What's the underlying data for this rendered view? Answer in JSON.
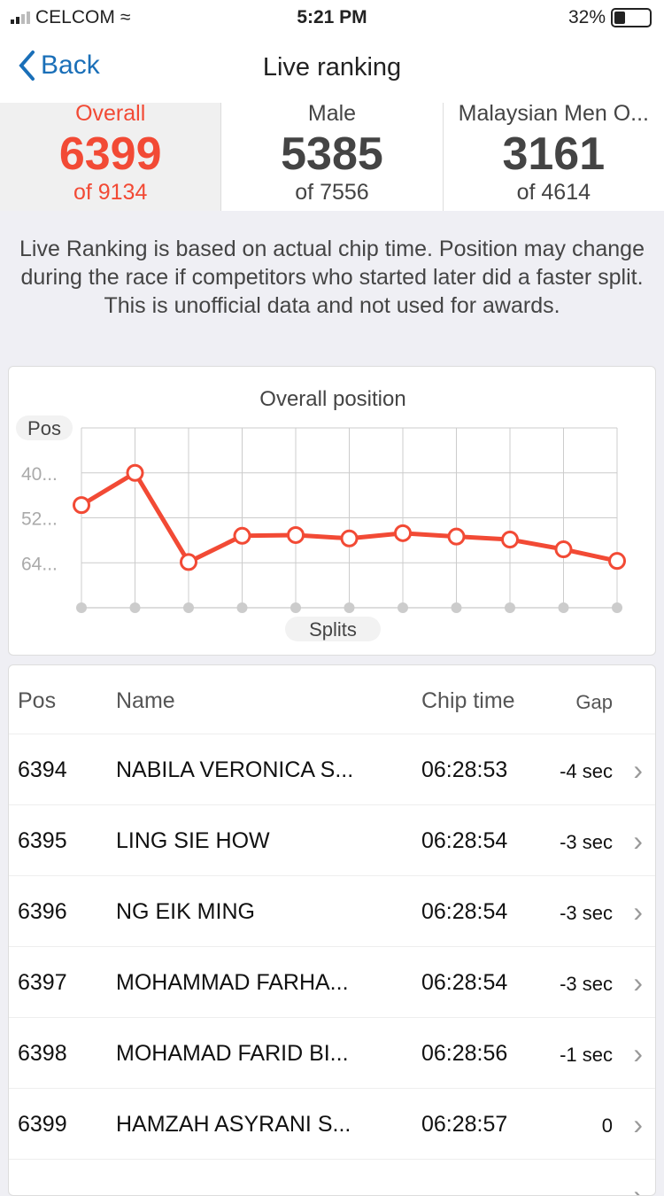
{
  "status": {
    "carrier": "CELCOM",
    "time": "5:21 PM",
    "battery": "32%",
    "battery_level": 0.32
  },
  "nav": {
    "back": "Back",
    "title": "Live ranking"
  },
  "tabs": [
    {
      "label": "Overall",
      "rank": "6399",
      "of": "of 9134"
    },
    {
      "label": "Male",
      "rank": "5385",
      "of": "of 7556"
    },
    {
      "label": "Malaysian Men O...",
      "rank": "3161",
      "of": "of 4614"
    }
  ],
  "note": "Live Ranking is based on actual chip time. Position may change during the race if competitors who started later did a faster split. This is unofficial data and not used for awards.",
  "chart_data": {
    "type": "line",
    "title": "Overall position",
    "ylabel": "Pos",
    "xlabel": "Splits",
    "y_tick_labels": [
      "40...",
      "52...",
      "64..."
    ],
    "y_ticks": [
      4000,
      5200,
      6400
    ],
    "ylim": [
      2800,
      7600
    ],
    "y_inverted": true,
    "grid": true,
    "x": [
      1,
      2,
      3,
      4,
      5,
      6,
      7,
      8,
      9,
      10,
      11
    ],
    "values": [
      4860,
      4000,
      6380,
      5680,
      5660,
      5750,
      5610,
      5700,
      5780,
      6040,
      6350
    ],
    "color": "#f24a35"
  },
  "table": {
    "headers": {
      "pos": "Pos",
      "name": "Name",
      "chip": "Chip time",
      "gap": "Gap"
    },
    "rows": [
      {
        "pos": "6394",
        "name": "NABILA VERONICA S...",
        "chip": "06:28:53",
        "gap": "-4 sec"
      },
      {
        "pos": "6395",
        "name": "LING SIE HOW",
        "chip": "06:28:54",
        "gap": "-3 sec"
      },
      {
        "pos": "6396",
        "name": "NG EIK MING",
        "chip": "06:28:54",
        "gap": "-3 sec"
      },
      {
        "pos": "6397",
        "name": "MOHAMMAD FARHA...",
        "chip": "06:28:54",
        "gap": "-3 sec"
      },
      {
        "pos": "6398",
        "name": "MOHAMAD FARID BI...",
        "chip": "06:28:56",
        "gap": "-1 sec"
      },
      {
        "pos": "6399",
        "name": "HAMZAH ASYRANI S...",
        "chip": "06:28:57",
        "gap": "0"
      }
    ]
  }
}
